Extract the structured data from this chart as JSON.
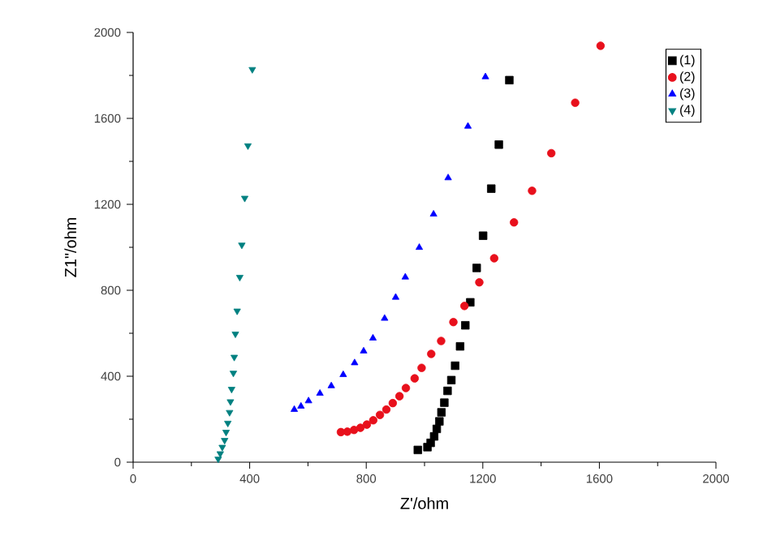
{
  "chart_data": {
    "type": "scatter",
    "xlabel": "Z'/ohm",
    "ylabel": "Z1\"/ohm",
    "xlim": [
      0,
      2000
    ],
    "ylim": [
      0,
      2000
    ],
    "xticks": [
      0,
      400,
      800,
      1200,
      1600,
      2000
    ],
    "yticks": [
      0,
      400,
      800,
      1200,
      1600,
      2000
    ],
    "grid": false,
    "legend": "top right",
    "series": [
      {
        "name": "(1)",
        "color": "#000000",
        "marker": "square",
        "x": [
          1291,
          1255,
          1229,
          1201,
          1179,
          1157,
          1140,
          1122,
          1105,
          1092,
          1079,
          1068,
          1058,
          1051,
          1042,
          1033,
          1021,
          1010,
          997,
          984,
          977
        ],
        "values": [
          1778,
          1478,
          1273,
          1054,
          904,
          744,
          637,
          539,
          449,
          382,
          332,
          277,
          232,
          190,
          155,
          120,
          90,
          70,
          null,
          null,
          57
        ]
      },
      {
        "name": "(2)",
        "color": "#e8101c",
        "marker": "circle",
        "x": [
          1604,
          1517,
          1435,
          1369,
          1307,
          1239,
          1188,
          1137,
          1099,
          1057,
          1023,
          990,
          966,
          936,
          914,
          891,
          869,
          847,
          824,
          802,
          780,
          758,
          735,
          713
        ],
        "values": [
          1938,
          1673,
          1438,
          1263,
          1116,
          949,
          837,
          727,
          652,
          564,
          504,
          439,
          390,
          345,
          307,
          275,
          245,
          220,
          195,
          175,
          160,
          150,
          142,
          140
        ]
      },
      {
        "name": "(3)",
        "color": "#0000ff",
        "marker": "triangle",
        "x": [
          1209,
          1149,
          1081,
          1031,
          982,
          934,
          901,
          863,
          823,
          791,
          760,
          721,
          680,
          641,
          602,
          576,
          553
        ],
        "values": [
          1793,
          1563,
          1323,
          1154,
          999,
          861,
          767,
          669,
          577,
          517,
          462,
          407,
          355,
          320,
          285,
          260,
          245
        ]
      },
      {
        "name": "(4)",
        "color": "#008080",
        "marker": "triangle down",
        "x": [
          409,
          394,
          383,
          373,
          366,
          357,
          351,
          347,
          344,
          338,
          334,
          331,
          325,
          319,
          314,
          306,
          299,
          292
        ],
        "values": [
          1828,
          1473,
          1229,
          1011,
          861,
          704,
          597,
          489,
          415,
          340,
          282,
          232,
          182,
          140,
          102,
          70,
          40,
          15
        ]
      }
    ]
  }
}
